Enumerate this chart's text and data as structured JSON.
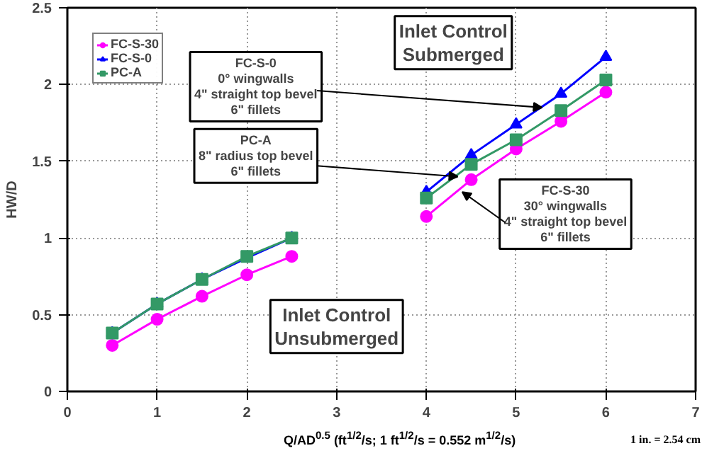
{
  "chart_data": {
    "type": "line",
    "xlabel": "Q/AD$^{0.5}$ (ft$^{1/2}$/s; 1 ft$^{1/2}$/s = 0.552 m$^{1/2}$/s)",
    "ylabel": "HW/D",
    "x": [
      0.5,
      1,
      1.5,
      2,
      2.5,
      3.25,
      4,
      4.5,
      5,
      5.5,
      6
    ],
    "series": [
      {
        "name": "FC-S-30",
        "color": "#ff00ff",
        "marker": "circle",
        "values": [
          0.3,
          0.47,
          0.62,
          0.76,
          0.88,
          null,
          1.14,
          1.38,
          1.58,
          1.76,
          1.95
        ]
      },
      {
        "name": "FC-S-0",
        "color": "#0000ff",
        "marker": "triangle",
        "values": [
          0.38,
          0.57,
          0.73,
          0.87,
          1.0,
          null,
          1.3,
          1.54,
          1.74,
          1.94,
          2.18
        ]
      },
      {
        "name": "PC-A",
        "color": "#339966",
        "marker": "square",
        "values": [
          0.38,
          0.57,
          0.73,
          0.88,
          1.0,
          null,
          1.26,
          1.48,
          1.64,
          1.83,
          2.03
        ]
      }
    ],
    "xlim": [
      0,
      7
    ],
    "xticks": [
      0,
      1,
      2,
      3,
      4,
      5,
      6,
      7
    ],
    "ylim": [
      0,
      2.5
    ],
    "yticks": [
      0,
      0.5,
      1,
      1.5,
      2,
      2.5
    ],
    "grid": true,
    "legend": "top left",
    "annotations": [
      "Inlet Control\nSubmerged",
      {
        "text": "FC-S-0\n0° wingwalls\n4\" straight top bevel\n6\" fillets",
        "x": 5.29,
        "y": 1.85
      },
      {
        "text": "PC-A\n8\" radius top bevel\n6\" fillets",
        "x": 4.35,
        "y": 1.4
      },
      {
        "text": "FC-S-30\n30° wingwalls\n4\" straight top bevel\n6\" fillets",
        "x": 4.4,
        "y": 1.3
      },
      "Inlet Control\nUnsubmerged",
      "1 in. = 2.54 cm"
    ]
  }
}
